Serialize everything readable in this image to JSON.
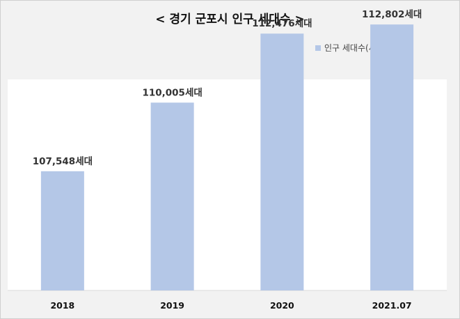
{
  "chart_data": {
    "type": "bar",
    "title": "< 경기 군포시 인구 세대수 >",
    "categories": [
      "2018",
      "2019",
      "2020",
      "2021.07"
    ],
    "series": [
      {
        "name": "인구 세대수(세대)",
        "values": [
          107548,
          110005,
          112476,
          112802
        ],
        "labels": [
          "107,548세대",
          "110,005세대",
          "112,476세대",
          "112,802세대"
        ],
        "color": "#b4c7e7"
      }
    ],
    "legend_position": "top-right",
    "grid": false
  }
}
